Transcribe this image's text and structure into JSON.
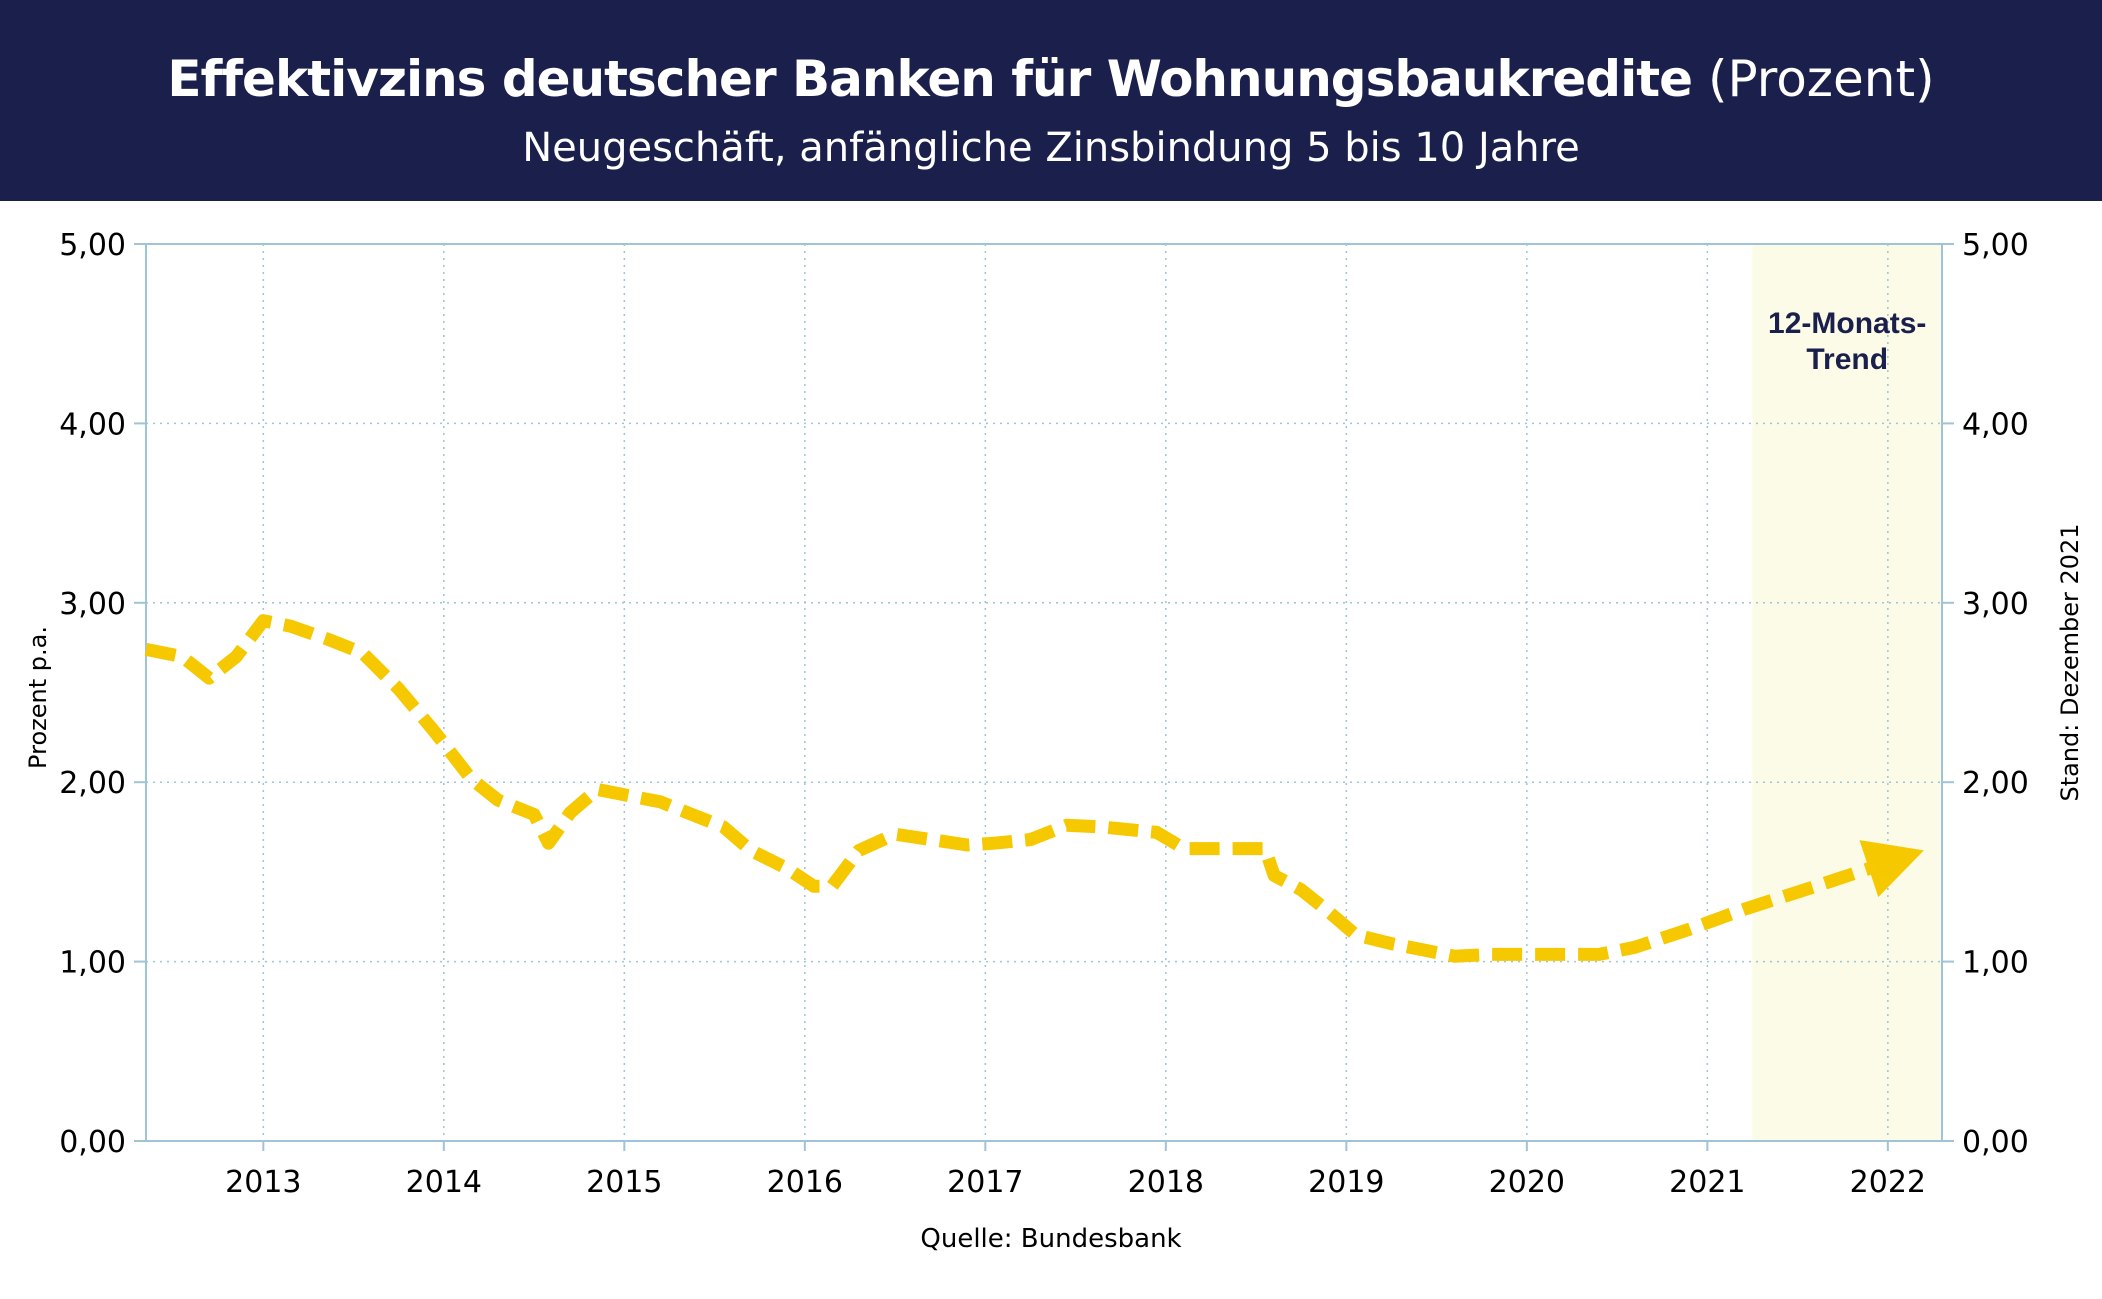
{
  "header": {
    "title": "Effektivzins deutscher Banken für Wohnungsbaukredite",
    "title_unit": "(Prozent)",
    "subtitle": "Neugeschäft, anfängliche Zinsbindung 5 bis 10 Jahre"
  },
  "chart_data": {
    "type": "line",
    "ylabel": "Prozent p.a.",
    "right_label": "Stand: Dezember 2021",
    "ylim": [
      0,
      5
    ],
    "xlim": [
      2012.35,
      2022.3
    ],
    "y_ticks": [
      "0,00",
      "1,00",
      "2,00",
      "3,00",
      "4,00",
      "5,00"
    ],
    "x_ticks": [
      "2013",
      "2014",
      "2015",
      "2016",
      "2017",
      "2018",
      "2019",
      "2020",
      "2021",
      "2022"
    ],
    "grid": true,
    "trend_box_label": [
      "12-Monats-",
      "Trend"
    ],
    "trend_box_range": [
      2021.25,
      2022.3
    ],
    "series": [
      {
        "style": "dashed",
        "color": "#f5c800",
        "x": [
          2012.35,
          2012.55,
          2012.7,
          2012.85,
          2013.0,
          2013.15,
          2013.35,
          2013.55,
          2013.75,
          2013.95,
          2014.15,
          2014.3,
          2014.5,
          2014.58,
          2014.7,
          2014.85,
          2015.0,
          2015.2,
          2015.4,
          2015.55,
          2015.7,
          2015.9,
          2016.05,
          2016.15,
          2016.3,
          2016.5,
          2016.7,
          2016.9,
          2017.05,
          2017.25,
          2017.45,
          2017.65,
          2017.85,
          2017.95,
          2018.1,
          2018.3,
          2018.55,
          2018.6,
          2018.75,
          2018.9,
          2019.05,
          2019.25,
          2019.45,
          2019.6,
          2019.8,
          2020.0,
          2020.2,
          2020.4,
          2020.6,
          2020.9,
          2021.2,
          2021.6,
          2021.9,
          2022.2
        ],
        "y": [
          2.74,
          2.7,
          2.58,
          2.7,
          2.9,
          2.87,
          2.8,
          2.72,
          2.52,
          2.28,
          2.02,
          1.9,
          1.82,
          1.66,
          1.83,
          1.96,
          1.93,
          1.89,
          1.81,
          1.75,
          1.62,
          1.52,
          1.42,
          1.42,
          1.62,
          1.71,
          1.68,
          1.65,
          1.66,
          1.68,
          1.76,
          1.75,
          1.73,
          1.72,
          1.63,
          1.63,
          1.63,
          1.48,
          1.4,
          1.28,
          1.15,
          1.1,
          1.06,
          1.03,
          1.04,
          1.04,
          1.04,
          1.04,
          1.08,
          1.18,
          1.29,
          1.42,
          1.52,
          1.62
        ]
      }
    ]
  },
  "source": "Quelle: Bundesbank",
  "colors": {
    "header_bg": "#1b1f4b",
    "line": "#f5c800",
    "axis": "#9ec4d6",
    "trend_box": "#fbfbe8"
  }
}
